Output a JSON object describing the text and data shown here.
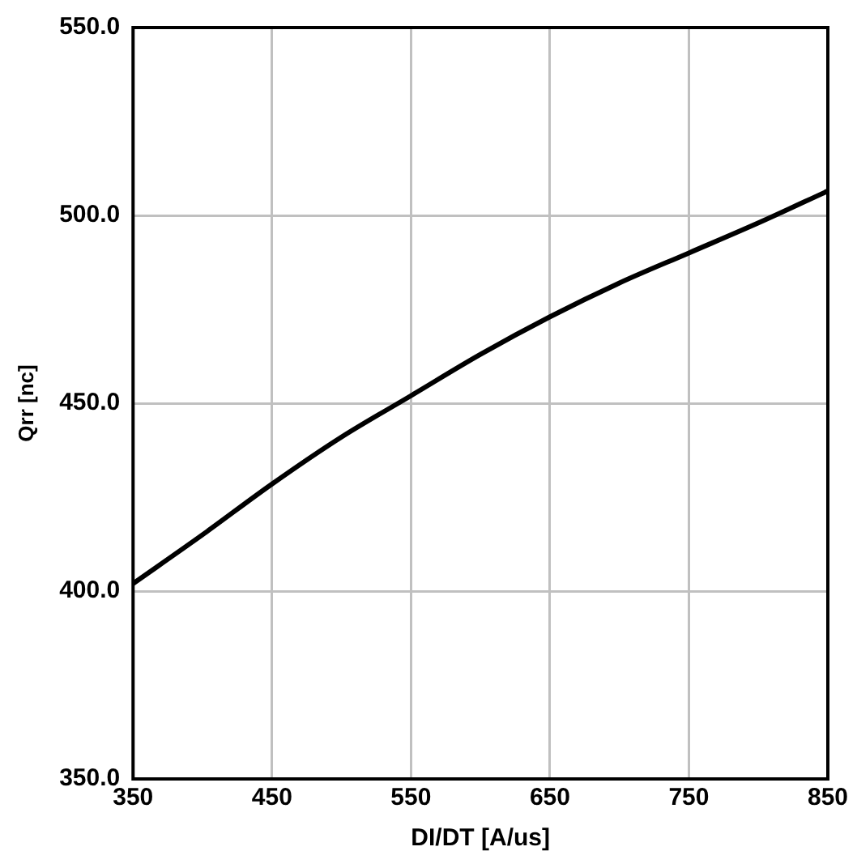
{
  "chart_data": {
    "type": "line",
    "xlabel": "DI/DT [A/us]",
    "ylabel": "Qrr [nc]",
    "x": [
      350,
      400,
      450,
      500,
      550,
      600,
      650,
      700,
      750,
      800,
      850
    ],
    "series": [
      {
        "color": "#000000",
        "values": [
          402,
          415,
          428.5,
          441,
          452,
          463,
          473,
          482,
          490,
          498,
          506.5
        ]
      }
    ],
    "xlim": [
      350,
      850
    ],
    "xticks": [
      350,
      450,
      550,
      650,
      750,
      850
    ],
    "ylim": [
      350,
      550
    ],
    "yticks": [
      {
        "value": 350,
        "label": "350.0"
      },
      {
        "value": 400,
        "label": "400.0"
      },
      {
        "value": 450,
        "label": "450.0"
      },
      {
        "value": 500,
        "label": "500.0"
      },
      {
        "value": 550,
        "label": "550.0"
      }
    ],
    "grid": true,
    "legend": false,
    "marker": "none",
    "line_style": "solid"
  }
}
